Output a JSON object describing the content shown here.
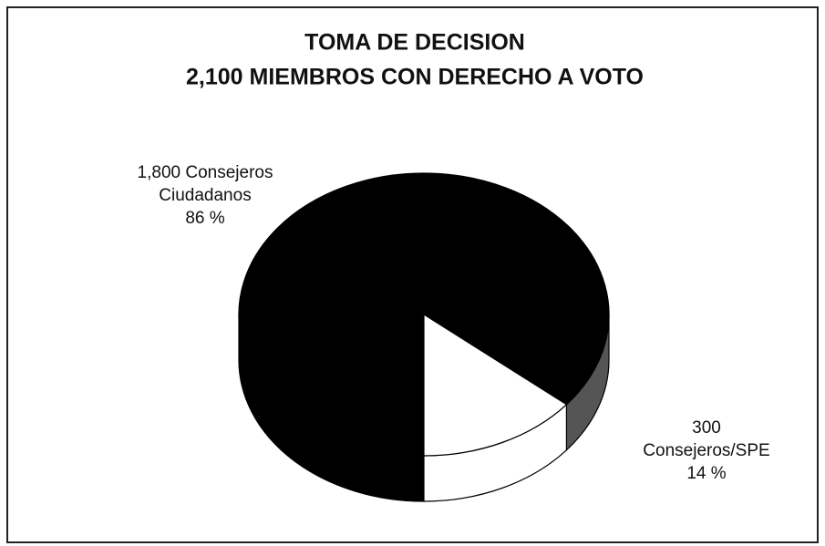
{
  "chart_data": {
    "type": "pie",
    "title": "TOMA DE DECISION",
    "subtitle": "2,100 MIEMBROS CON DERECHO A VOTO",
    "categories": [
      [
        "1,800 Consejeros",
        "Ciudadanos"
      ],
      [
        "300",
        "Consejeros/SPE"
      ]
    ],
    "values": [
      86,
      14
    ],
    "value_labels": [
      "86 %",
      "14 %"
    ],
    "colors": [
      "#000000",
      "#ffffff"
    ]
  }
}
